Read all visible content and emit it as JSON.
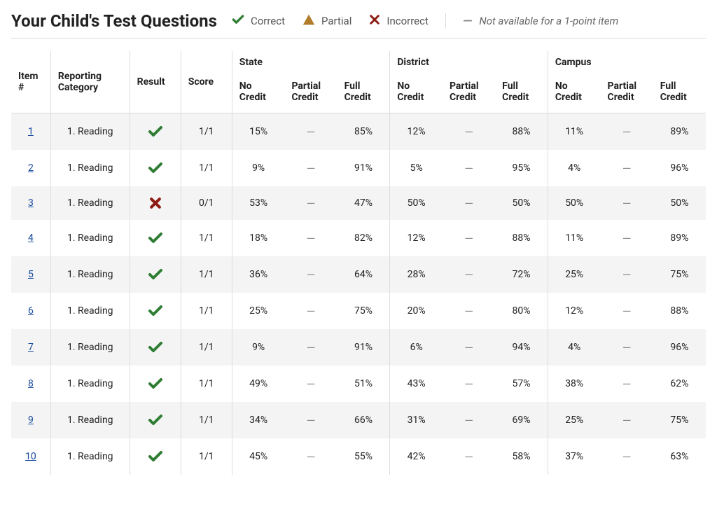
{
  "title": "Your Child's Test Questions",
  "legend": {
    "correct": "Correct",
    "partial": "Partial",
    "incorrect": "Incorrect",
    "note": "Not available for a 1-point item",
    "dash": "—"
  },
  "colors": {
    "correct": "#2e7d32",
    "partial": "#b07d2b",
    "incorrect": "#8c1c13",
    "link": "#1a4ca0",
    "dash": "#888888"
  },
  "headers": {
    "item": "Item #",
    "category": "Reporting Category",
    "result": "Result",
    "score": "Score",
    "groups": [
      "State",
      "District",
      "Campus"
    ],
    "sub": {
      "no": "No Credit",
      "partial": "Partial Credit",
      "full": "Full Credit"
    }
  },
  "rows": [
    {
      "item": "1",
      "category": "1. Reading",
      "result": "correct",
      "score": "1/1",
      "state": {
        "no": "15%",
        "partial": "—",
        "full": "85%"
      },
      "district": {
        "no": "12%",
        "partial": "—",
        "full": "88%"
      },
      "campus": {
        "no": "11%",
        "partial": "—",
        "full": "89%"
      }
    },
    {
      "item": "2",
      "category": "1. Reading",
      "result": "correct",
      "score": "1/1",
      "state": {
        "no": "9%",
        "partial": "—",
        "full": "91%"
      },
      "district": {
        "no": "5%",
        "partial": "—",
        "full": "95%"
      },
      "campus": {
        "no": "4%",
        "partial": "—",
        "full": "96%"
      }
    },
    {
      "item": "3",
      "category": "1. Reading",
      "result": "incorrect",
      "score": "0/1",
      "state": {
        "no": "53%",
        "partial": "—",
        "full": "47%"
      },
      "district": {
        "no": "50%",
        "partial": "—",
        "full": "50%"
      },
      "campus": {
        "no": "50%",
        "partial": "—",
        "full": "50%"
      }
    },
    {
      "item": "4",
      "category": "1. Reading",
      "result": "correct",
      "score": "1/1",
      "state": {
        "no": "18%",
        "partial": "—",
        "full": "82%"
      },
      "district": {
        "no": "12%",
        "partial": "—",
        "full": "88%"
      },
      "campus": {
        "no": "11%",
        "partial": "—",
        "full": "89%"
      }
    },
    {
      "item": "5",
      "category": "1. Reading",
      "result": "correct",
      "score": "1/1",
      "state": {
        "no": "36%",
        "partial": "—",
        "full": "64%"
      },
      "district": {
        "no": "28%",
        "partial": "—",
        "full": "72%"
      },
      "campus": {
        "no": "25%",
        "partial": "—",
        "full": "75%"
      }
    },
    {
      "item": "6",
      "category": "1. Reading",
      "result": "correct",
      "score": "1/1",
      "state": {
        "no": "25%",
        "partial": "—",
        "full": "75%"
      },
      "district": {
        "no": "20%",
        "partial": "—",
        "full": "80%"
      },
      "campus": {
        "no": "12%",
        "partial": "—",
        "full": "88%"
      }
    },
    {
      "item": "7",
      "category": "1. Reading",
      "result": "correct",
      "score": "1/1",
      "state": {
        "no": "9%",
        "partial": "—",
        "full": "91%"
      },
      "district": {
        "no": "6%",
        "partial": "—",
        "full": "94%"
      },
      "campus": {
        "no": "4%",
        "partial": "—",
        "full": "96%"
      }
    },
    {
      "item": "8",
      "category": "1. Reading",
      "result": "correct",
      "score": "1/1",
      "state": {
        "no": "49%",
        "partial": "—",
        "full": "51%"
      },
      "district": {
        "no": "43%",
        "partial": "—",
        "full": "57%"
      },
      "campus": {
        "no": "38%",
        "partial": "—",
        "full": "62%"
      }
    },
    {
      "item": "9",
      "category": "1. Reading",
      "result": "correct",
      "score": "1/1",
      "state": {
        "no": "34%",
        "partial": "—",
        "full": "66%"
      },
      "district": {
        "no": "31%",
        "partial": "—",
        "full": "69%"
      },
      "campus": {
        "no": "25%",
        "partial": "—",
        "full": "75%"
      }
    },
    {
      "item": "10",
      "category": "1. Reading",
      "result": "correct",
      "score": "1/1",
      "state": {
        "no": "45%",
        "partial": "—",
        "full": "55%"
      },
      "district": {
        "no": "42%",
        "partial": "—",
        "full": "58%"
      },
      "campus": {
        "no": "37%",
        "partial": "—",
        "full": "63%"
      }
    }
  ]
}
